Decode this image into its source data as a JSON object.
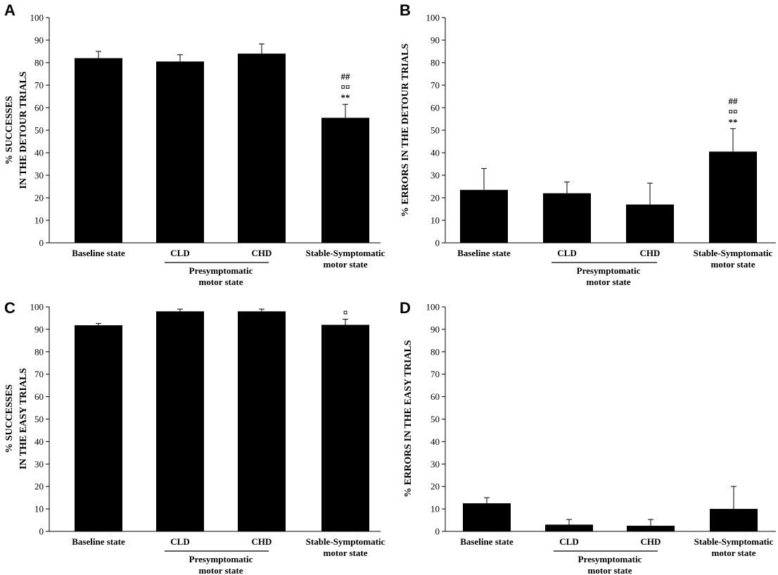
{
  "figure": {
    "background": "#ffffff",
    "bar_color": "#000000"
  },
  "chart_data": [
    {
      "panel": "A",
      "type": "bar",
      "ylabel": [
        "% SUCCESSES",
        "IN THE DETOUR TRIALS"
      ],
      "ylim": [
        0,
        100
      ],
      "yticks": [
        "0",
        "10",
        "20",
        "30",
        "40",
        "50",
        "60",
        "70",
        "80",
        "90",
        "100"
      ],
      "categories": [
        "Baseline state",
        "CLD",
        "CHD",
        "Stable-Symptomatic"
      ],
      "category_line2": [
        "",
        "",
        "",
        "motor state"
      ],
      "group_label": [
        "Presymptomatic",
        "motor state"
      ],
      "values": [
        82,
        80.5,
        84,
        55.5
      ],
      "errors": [
        3,
        3,
        4.3,
        6
      ],
      "annotations": [
        [
          "",
          "",
          "",
          ""
        ],
        [
          "",
          "",
          "",
          ""
        ],
        [
          "",
          "",
          "",
          "##"
        ],
        [
          "",
          "",
          "",
          "¤¤"
        ],
        [
          "",
          "",
          "",
          "**"
        ]
      ]
    },
    {
      "panel": "B",
      "type": "bar",
      "ylabel": [
        "% ERRORS IN THE DETOUR TRIALS"
      ],
      "ylim": [
        0,
        100
      ],
      "yticks": [
        "0",
        "10",
        "20",
        "30",
        "40",
        "50",
        "60",
        "70",
        "80",
        "90",
        "100"
      ],
      "categories": [
        "Baseline state",
        "CLD",
        "CHD",
        "Stable-Symptomatic"
      ],
      "category_line2": [
        "",
        "",
        "",
        "motor state"
      ],
      "group_label": [
        "Presymptomatic",
        "motor state"
      ],
      "values": [
        23.5,
        22,
        17,
        40.5
      ],
      "errors": [
        9.5,
        5,
        9.5,
        10.2
      ],
      "annotations": [
        [
          "",
          "",
          "",
          "##"
        ],
        [
          "",
          "",
          "",
          "¤¤"
        ],
        [
          "",
          "",
          "",
          "**"
        ]
      ]
    },
    {
      "panel": "C",
      "type": "bar",
      "ylabel": [
        "% SUCCESSES",
        "IN THE EASY TRIALS"
      ],
      "ylim": [
        0,
        100
      ],
      "yticks": [
        "0",
        "10",
        "20",
        "30",
        "40",
        "50",
        "60",
        "70",
        "80",
        "90",
        "100"
      ],
      "categories": [
        "Baseline state",
        "CLD",
        "CHD",
        "Stable-Symptomatic"
      ],
      "category_line2": [
        "",
        "",
        "",
        "motor state"
      ],
      "group_label": [
        "Presymptomatic",
        "motor state"
      ],
      "values": [
        91.8,
        98,
        98,
        92
      ],
      "errors": [
        0.8,
        1,
        1,
        2.5
      ],
      "annotations": [
        [
          "",
          "",
          "",
          "¤"
        ]
      ]
    },
    {
      "panel": "D",
      "type": "bar",
      "ylabel": [
        "% ERRORS IN THE EASY TRIALS"
      ],
      "ylim": [
        0,
        100
      ],
      "yticks": [
        "0",
        "10",
        "20",
        "30",
        "40",
        "50",
        "60",
        "70",
        "80",
        "90",
        "100"
      ],
      "categories": [
        "Baseline state",
        "CLD",
        "CHD",
        "Stable-Symptomatic"
      ],
      "category_line2": [
        "",
        "",
        "",
        "motor state"
      ],
      "group_label": [
        "Presymptomatic",
        "motor state"
      ],
      "values": [
        12.5,
        3,
        2.5,
        10
      ],
      "errors": [
        2.5,
        2.3,
        2.8,
        10
      ],
      "annotations": []
    }
  ]
}
